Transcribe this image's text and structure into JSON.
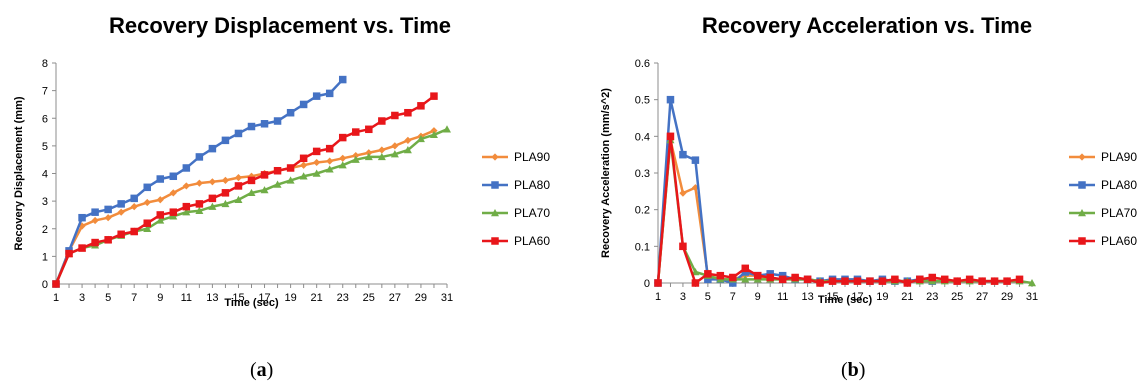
{
  "chart_data": [
    {
      "type": "line",
      "title": "Recovery Displacement vs. Time",
      "xlabel": "Time (sec)",
      "ylabel": "Recovery Displacement (mm)",
      "ylim": [
        0,
        8
      ],
      "yticks": [
        0,
        1,
        2,
        3,
        4,
        5,
        6,
        7,
        8
      ],
      "xlim": [
        1,
        31
      ],
      "xticks": [
        1,
        3,
        5,
        7,
        9,
        11,
        13,
        15,
        17,
        19,
        21,
        23,
        25,
        27,
        29,
        31
      ],
      "panel_label": "a",
      "legend_position": "right",
      "grid": false,
      "series": [
        {
          "name": "PLA90",
          "color": "#F28C3C",
          "marker": "diamond",
          "x": [
            1,
            2,
            3,
            4,
            5,
            6,
            7,
            8,
            9,
            10,
            11,
            12,
            13,
            14,
            15,
            16,
            17,
            18,
            19,
            20,
            21,
            22,
            23,
            24,
            25,
            26,
            27,
            28,
            29,
            30
          ],
          "values": [
            0,
            1.2,
            2.1,
            2.3,
            2.4,
            2.6,
            2.8,
            2.95,
            3.05,
            3.3,
            3.55,
            3.65,
            3.7,
            3.75,
            3.85,
            3.9,
            4.0,
            4.1,
            4.2,
            4.3,
            4.4,
            4.45,
            4.55,
            4.65,
            4.75,
            4.85,
            5.0,
            5.2,
            5.35,
            5.55
          ]
        },
        {
          "name": "PLA80",
          "color": "#4472C4",
          "marker": "square",
          "x": [
            1,
            2,
            3,
            4,
            5,
            6,
            7,
            8,
            9,
            10,
            11,
            12,
            13,
            14,
            15,
            16,
            17,
            18,
            19,
            20,
            21,
            22,
            23
          ],
          "values": [
            0,
            1.2,
            2.4,
            2.6,
            2.7,
            2.9,
            3.1,
            3.5,
            3.8,
            3.9,
            4.2,
            4.6,
            4.9,
            5.2,
            5.45,
            5.7,
            5.8,
            5.9,
            6.2,
            6.5,
            6.8,
            6.9,
            7.4
          ]
        },
        {
          "name": "PLA70",
          "color": "#70AD47",
          "marker": "triangle",
          "x": [
            1,
            2,
            3,
            4,
            5,
            6,
            7,
            8,
            9,
            10,
            11,
            12,
            13,
            14,
            15,
            16,
            17,
            18,
            19,
            20,
            21,
            22,
            23,
            24,
            25,
            26,
            27,
            28,
            29,
            30,
            31
          ],
          "values": [
            0,
            1.1,
            1.3,
            1.4,
            1.6,
            1.75,
            1.9,
            2.0,
            2.3,
            2.45,
            2.6,
            2.65,
            2.8,
            2.9,
            3.05,
            3.3,
            3.4,
            3.6,
            3.75,
            3.9,
            4.0,
            4.15,
            4.3,
            4.5,
            4.6,
            4.6,
            4.7,
            4.85,
            5.25,
            5.4,
            5.6
          ]
        },
        {
          "name": "PLA60",
          "color": "#E8161A",
          "marker": "square",
          "x": [
            1,
            2,
            3,
            4,
            5,
            6,
            7,
            8,
            9,
            10,
            11,
            12,
            13,
            14,
            15,
            16,
            17,
            18,
            19,
            20,
            21,
            22,
            23,
            24,
            25,
            26,
            27,
            28,
            29,
            30
          ],
          "values": [
            0,
            1.1,
            1.3,
            1.5,
            1.6,
            1.8,
            1.9,
            2.2,
            2.5,
            2.6,
            2.8,
            2.9,
            3.1,
            3.3,
            3.55,
            3.75,
            3.95,
            4.1,
            4.2,
            4.55,
            4.8,
            4.9,
            5.3,
            5.5,
            5.6,
            5.9,
            6.1,
            6.2,
            6.45,
            6.8
          ]
        }
      ]
    },
    {
      "type": "line",
      "title": "Recovery Acceleration vs. Time",
      "xlabel": "Time (sec)",
      "ylabel": "Recovery Acceleration (mm/s^2)",
      "ylim": [
        0,
        0.6
      ],
      "yticks": [
        "0",
        "0.1",
        "0.2",
        "0.3",
        "0.4",
        "0.5",
        "0.6"
      ],
      "xlim": [
        1,
        31
      ],
      "xticks": [
        1,
        3,
        5,
        7,
        9,
        11,
        13,
        15,
        17,
        19,
        21,
        23,
        25,
        27,
        29,
        31
      ],
      "panel_label": "b",
      "legend_position": "right",
      "grid": false,
      "series": [
        {
          "name": "PLA90",
          "color": "#F28C3C",
          "marker": "diamond",
          "x": [
            1,
            2,
            3,
            4,
            5,
            6,
            7,
            8,
            9,
            10,
            11,
            12,
            13,
            14,
            15,
            16,
            17,
            18,
            19,
            20,
            21,
            22,
            23,
            24,
            25,
            26,
            27,
            28,
            29,
            30
          ],
          "values": [
            0,
            0.39,
            0.245,
            0.26,
            0.02,
            0.01,
            0.01,
            0.02,
            0.02,
            0.01,
            0.01,
            0.01,
            0.01,
            0.005,
            0.005,
            0.005,
            0.005,
            0.005,
            0.005,
            0.005,
            0.005,
            0.005,
            0.005,
            0.005,
            0.005,
            0.005,
            0.005,
            0.005,
            0.005,
            0.005
          ]
        },
        {
          "name": "PLA80",
          "color": "#4472C4",
          "marker": "square",
          "x": [
            1,
            2,
            3,
            4,
            5,
            6,
            7,
            8,
            9,
            10,
            11,
            12,
            13,
            14,
            15,
            16,
            17,
            18,
            19,
            20,
            21,
            22,
            23
          ],
          "values": [
            0,
            0.5,
            0.35,
            0.335,
            0.01,
            0.01,
            0,
            0.03,
            0.02,
            0.025,
            0.02,
            0.01,
            0.01,
            0.005,
            0.01,
            0.01,
            0.01,
            0.005,
            0.01,
            0.005,
            0.005,
            0.01,
            0.005
          ]
        },
        {
          "name": "PLA70",
          "color": "#70AD47",
          "marker": "triangle",
          "x": [
            1,
            2,
            3,
            4,
            5,
            6,
            7,
            8,
            9,
            10,
            11,
            12,
            13,
            14,
            15,
            16,
            17,
            18,
            19,
            20,
            21,
            22,
            23,
            24,
            25,
            26,
            27,
            28,
            29,
            30,
            31
          ],
          "values": [
            0,
            0.39,
            0.1,
            0.03,
            0.02,
            0.01,
            0.01,
            0.01,
            0.01,
            0.01,
            0.01,
            0.01,
            0.01,
            0.005,
            0.005,
            0.005,
            0.005,
            0.005,
            0.005,
            0.005,
            0.005,
            0.005,
            0.005,
            0.005,
            0.005,
            0.005,
            0.005,
            0.005,
            0.005,
            0.005,
            0
          ]
        },
        {
          "name": "PLA60",
          "color": "#E8161A",
          "marker": "square",
          "x": [
            1,
            2,
            3,
            4,
            5,
            6,
            7,
            8,
            9,
            10,
            11,
            12,
            13,
            14,
            15,
            16,
            17,
            18,
            19,
            20,
            21,
            22,
            23,
            24,
            25,
            26,
            27,
            28,
            29,
            30
          ],
          "values": [
            0,
            0.4,
            0.1,
            0,
            0.025,
            0.02,
            0.015,
            0.04,
            0.02,
            0.015,
            0.01,
            0.015,
            0.01,
            0,
            0.005,
            0.005,
            0.005,
            0.005,
            0.005,
            0.01,
            0,
            0.01,
            0.015,
            0.01,
            0.005,
            0.01,
            0.005,
            0.005,
            0.005,
            0.01
          ]
        }
      ]
    }
  ]
}
